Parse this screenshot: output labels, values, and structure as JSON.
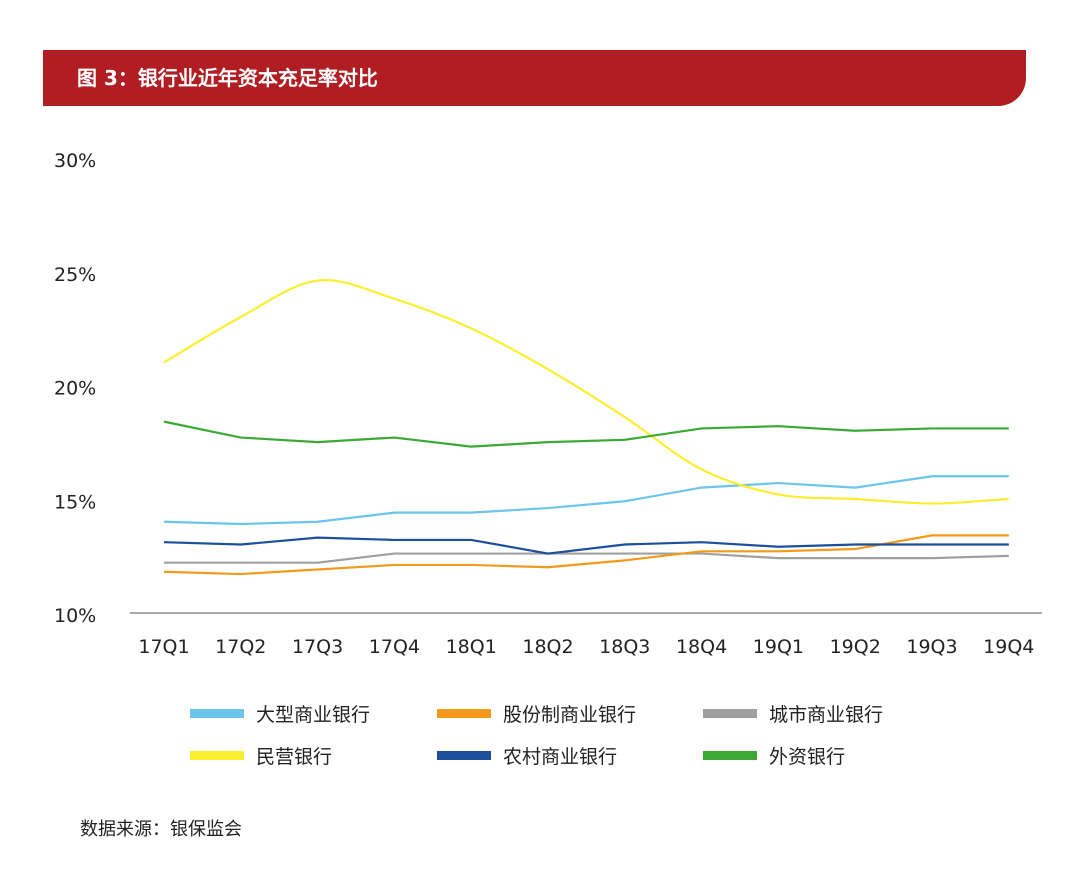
{
  "title": "图 3：银行业近年资本充足率对比",
  "source": "数据来源：银保监会",
  "chart_data": {
    "type": "line",
    "categories": [
      "17Q1",
      "17Q2",
      "17Q3",
      "17Q4",
      "18Q1",
      "18Q2",
      "18Q3",
      "18Q4",
      "19Q1",
      "19Q2",
      "19Q3",
      "19Q4"
    ],
    "ylim": [
      10,
      30
    ],
    "yticks": [
      10,
      15,
      20,
      25,
      30
    ],
    "ytick_labels": [
      "10%",
      "15%",
      "20%",
      "25%",
      "30%"
    ],
    "grid": false,
    "legend_position": "bottom",
    "series": [
      {
        "name": "大型商业银行",
        "color": "#6cc5ea",
        "values": [
          14.1,
          14.0,
          14.1,
          14.5,
          14.5,
          14.7,
          15.0,
          15.6,
          15.8,
          15.6,
          16.1,
          16.1
        ]
      },
      {
        "name": "股份制商业银行",
        "color": "#f39a1c",
        "values": [
          11.9,
          11.8,
          12.0,
          12.2,
          12.2,
          12.1,
          12.4,
          12.8,
          12.8,
          12.9,
          13.5,
          13.5
        ]
      },
      {
        "name": "城市商业银行",
        "color": "#a0a0a0",
        "values": [
          12.3,
          12.3,
          12.3,
          12.7,
          12.7,
          12.7,
          12.7,
          12.7,
          12.5,
          12.5,
          12.5,
          12.6
        ]
      },
      {
        "name": "民营银行",
        "color": "#fbee2e",
        "values": [
          21.1,
          23.1,
          24.7,
          23.9,
          22.6,
          20.8,
          18.7,
          16.4,
          15.3,
          15.1,
          14.9,
          15.1
        ]
      },
      {
        "name": "农村商业银行",
        "color": "#1c4f9c",
        "values": [
          13.2,
          13.1,
          13.4,
          13.3,
          13.3,
          12.7,
          13.1,
          13.2,
          13.0,
          13.1,
          13.1,
          13.1
        ]
      },
      {
        "name": "外资银行",
        "color": "#3aaa35",
        "values": [
          18.5,
          17.8,
          17.6,
          17.8,
          17.4,
          17.6,
          17.7,
          18.2,
          18.3,
          18.1,
          18.2,
          18.2
        ]
      }
    ]
  }
}
